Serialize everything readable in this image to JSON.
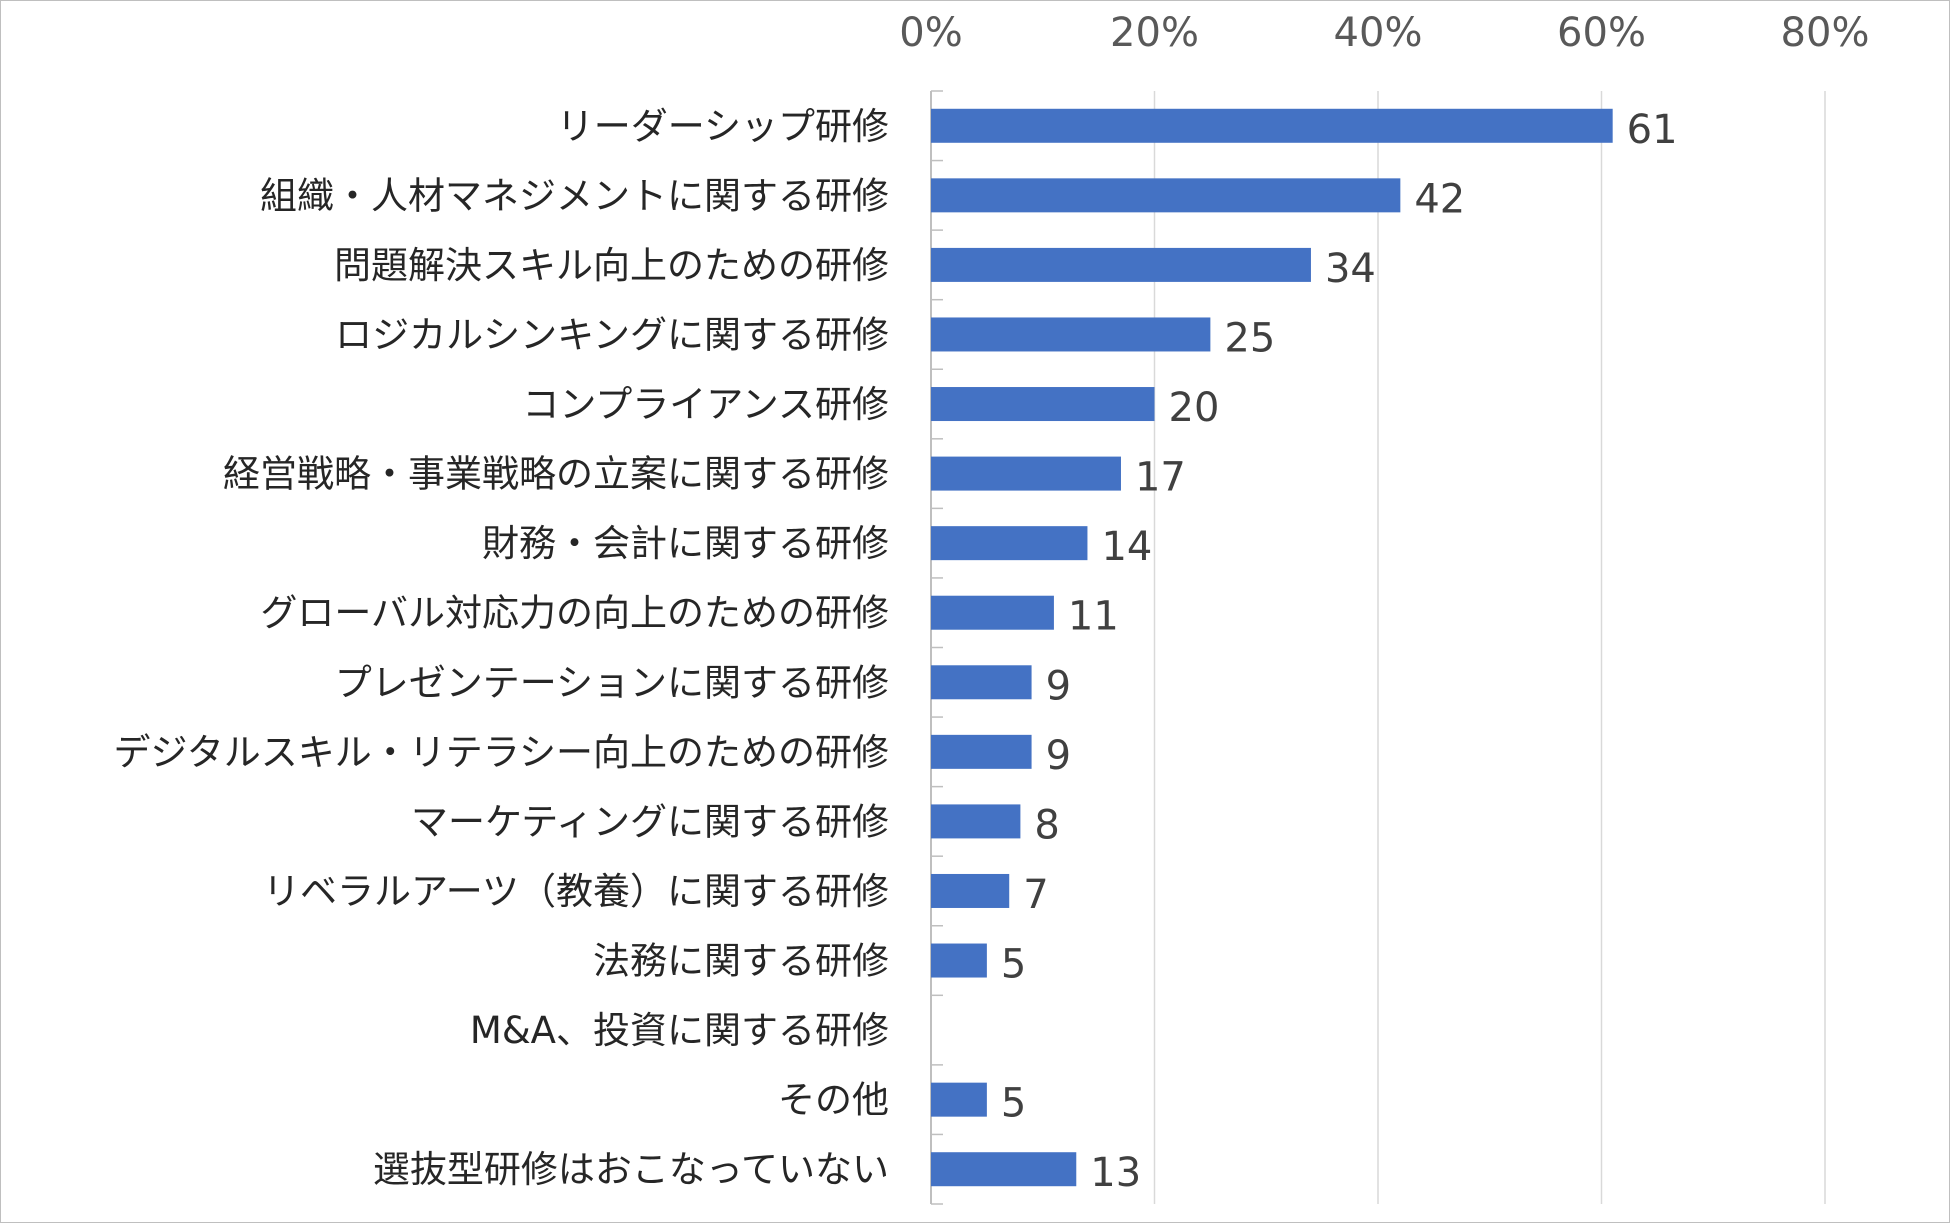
{
  "chart_data": {
    "type": "bar",
    "orientation": "horizontal",
    "title": "",
    "xlabel": "",
    "ylabel": "",
    "xlim": [
      0,
      80
    ],
    "x_ticks": [
      "0%",
      "20%",
      "40%",
      "60%",
      "80%"
    ],
    "x_tick_values": [
      0,
      20,
      40,
      60,
      80
    ],
    "grid": true,
    "bar_color": "#4472c4",
    "categories": [
      "リーダーシップ研修",
      "組織・人材マネジメントに関する研修",
      "問題解決スキル向上のための研修",
      "ロジカルシンキングに関する研修",
      "コンプライアンス研修",
      "経営戦略・事業戦略の立案に関する研修",
      "財務・会計に関する研修",
      "グローバル対応力の向上のための研修",
      "プレゼンテーションに関する研修",
      "デジタルスキル・リテラシー向上のための研修",
      "マーケティングに関する研修",
      "リベラルアーツ（教養）に関する研修",
      "法務に関する研修",
      "M&A、投資に関する研修",
      "その他",
      "選抜型研修はおこなっていない"
    ],
    "values": [
      61,
      42,
      34,
      25,
      20,
      17,
      14,
      11,
      9,
      9,
      8,
      7,
      5,
      null,
      5,
      13
    ],
    "value_labels": [
      "61",
      "42",
      "34",
      "25",
      "20",
      "17",
      "14",
      "11",
      "9",
      "9",
      "8",
      "7",
      "5",
      "",
      "5",
      "13"
    ]
  }
}
